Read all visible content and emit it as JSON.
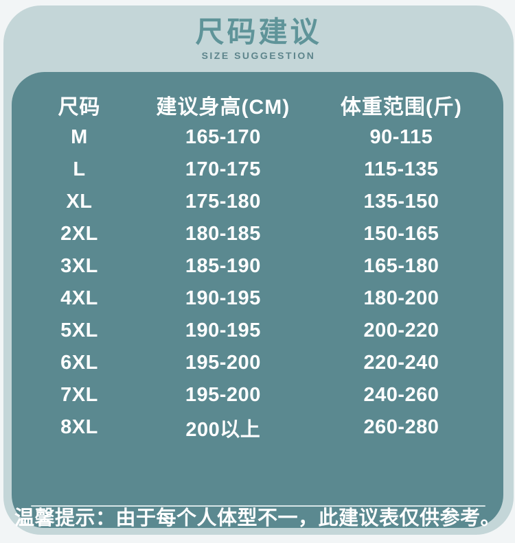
{
  "header": {
    "title": "尺码建议",
    "subtitle": "SIZE SUGGESTION"
  },
  "table": {
    "columns": [
      "尺码",
      "建议身高(CM)",
      "体重范围(斤)"
    ],
    "rows": [
      {
        "size": "M",
        "height": "165-170",
        "weight": "90-115"
      },
      {
        "size": "L",
        "height": "170-175",
        "weight": "115-135"
      },
      {
        "size": "XL",
        "height": "175-180",
        "weight": "135-150"
      },
      {
        "size": "2XL",
        "height": "180-185",
        "weight": "150-165"
      },
      {
        "size": "3XL",
        "height": "185-190",
        "weight": "165-180"
      },
      {
        "size": "4XL",
        "height": "190-195",
        "weight": "180-200"
      },
      {
        "size": "5XL",
        "height": "190-195",
        "weight": "200-220"
      },
      {
        "size": "6XL",
        "height": "195-200",
        "weight": "220-240"
      },
      {
        "size": "7XL",
        "height": "195-200",
        "weight": "240-260"
      },
      {
        "size": "8XL",
        "height": "200以上",
        "weight": "260-280"
      }
    ]
  },
  "footer": {
    "tip": "温馨提示：由于每个人体型不一，此建议表仅供参考。"
  },
  "colors": {
    "page_background": "#f2f5f6",
    "card_background": "#c4d6d8",
    "panel_background": "#5b8990",
    "title_text": "#5f9499",
    "subtitle_text": "#5e858c",
    "table_text": "#ffffff",
    "divider": "#d8e6e8"
  },
  "chart_data": {
    "type": "table",
    "title": "尺码建议",
    "subtitle": "SIZE SUGGESTION",
    "columns": [
      "尺码",
      "建议身高(CM)",
      "体重范围(斤)"
    ],
    "rows": [
      [
        "M",
        "165-170",
        "90-115"
      ],
      [
        "L",
        "170-175",
        "115-135"
      ],
      [
        "XL",
        "175-180",
        "135-150"
      ],
      [
        "2XL",
        "180-185",
        "150-165"
      ],
      [
        "3XL",
        "185-190",
        "165-180"
      ],
      [
        "4XL",
        "190-195",
        "180-200"
      ],
      [
        "5XL",
        "190-195",
        "200-220"
      ],
      [
        "6XL",
        "195-200",
        "220-240"
      ],
      [
        "7XL",
        "195-200",
        "240-260"
      ],
      [
        "8XL",
        "200以上",
        "260-280"
      ]
    ],
    "note": "温馨提示：由于每个人体型不一，此建议表仅供参考。"
  }
}
